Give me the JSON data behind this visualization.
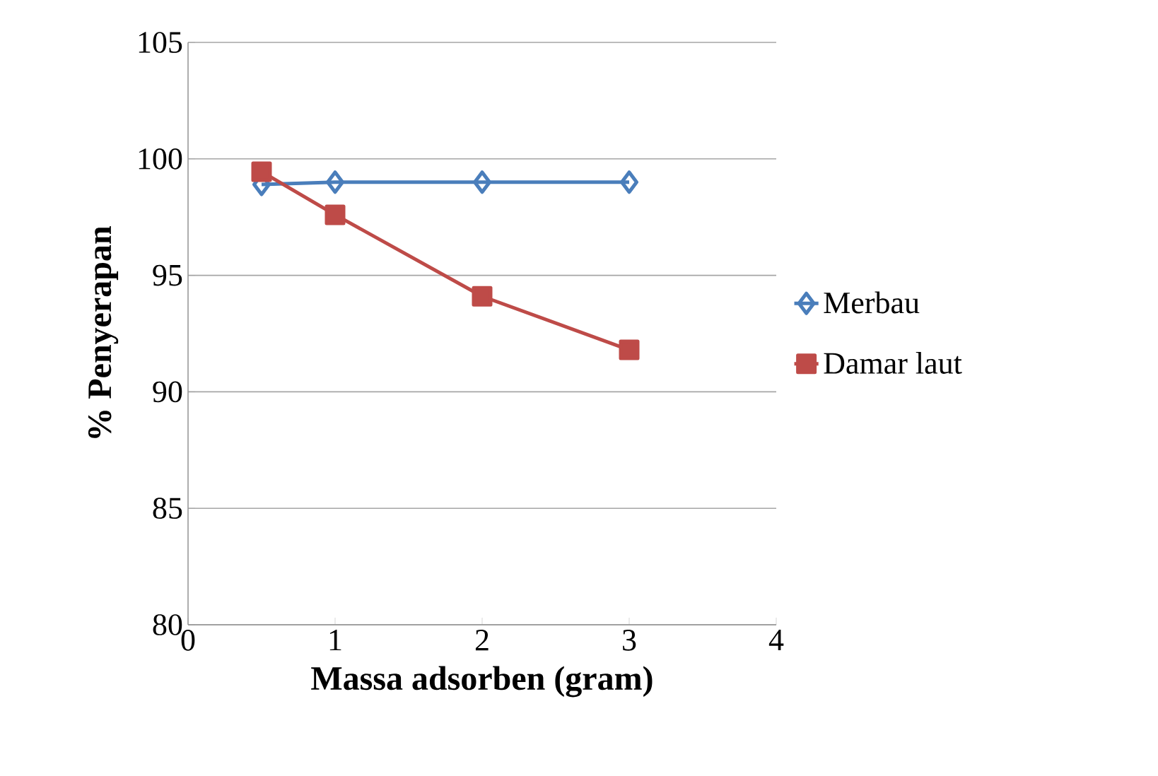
{
  "chart_data": {
    "type": "line",
    "xlabel": "Massa adsorben (gram)",
    "ylabel": "% Penyerapan",
    "x": [
      0.5,
      1,
      2,
      3
    ],
    "series": [
      {
        "name": "Merbau",
        "color": "#4a7ebb",
        "marker": "diamond",
        "values": [
          98.9,
          99.0,
          99.0,
          99.0
        ]
      },
      {
        "name": "Damar laut",
        "color": "#be4b48",
        "marker": "square",
        "values": [
          99.45,
          97.6,
          94.1,
          91.8
        ]
      }
    ],
    "xlim": [
      0,
      4
    ],
    "ylim": [
      80,
      105
    ],
    "xticks": [
      0,
      1,
      2,
      3,
      4
    ],
    "yticks": [
      80,
      85,
      90,
      95,
      100,
      105
    ],
    "grid": "y",
    "legend": "right",
    "line_style": "solid"
  }
}
